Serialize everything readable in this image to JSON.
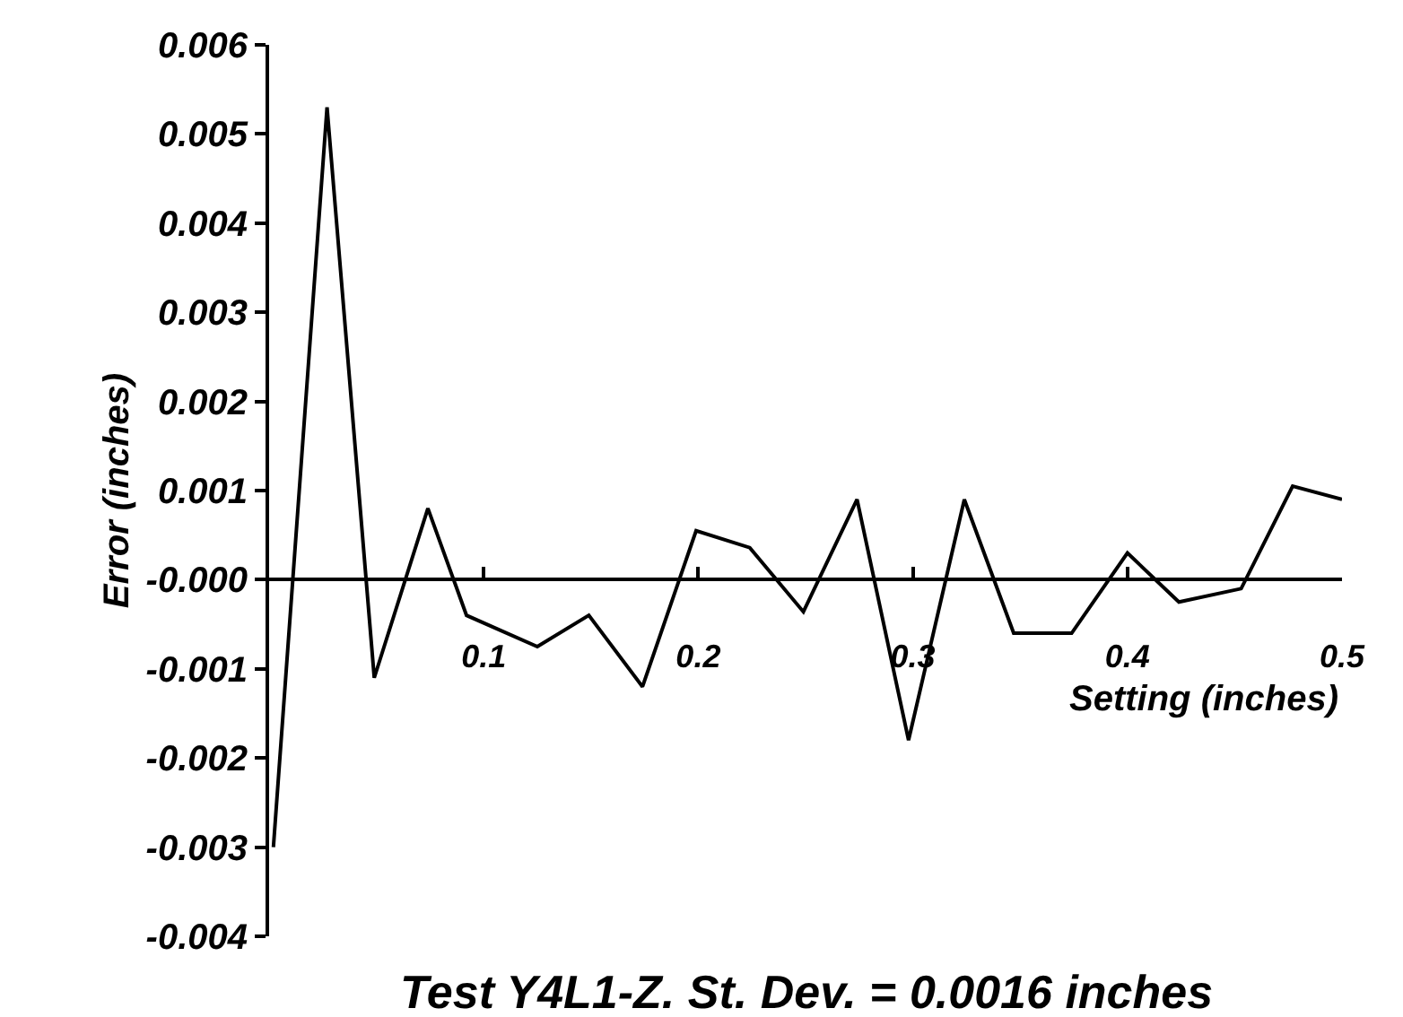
{
  "chart_data": {
    "type": "line",
    "xlabel": "Setting (inches)",
    "ylabel": "Error (inches)",
    "annotations": [
      "Test Y4L1-Z. St. Dev. = 0.0016 inches"
    ],
    "x": [
      0.002,
      0.027,
      0.049,
      0.074,
      0.092,
      0.125,
      0.149,
      0.174,
      0.199,
      0.224,
      0.249,
      0.274,
      0.298,
      0.324,
      0.347,
      0.374,
      0.4,
      0.424,
      0.453,
      0.477,
      0.5
    ],
    "series": [
      {
        "color": "#000000",
        "values": [
          -0.003,
          0.0053,
          -0.0011,
          0.0008,
          -0.0004,
          -0.00075,
          -0.0004,
          -0.0012,
          0.00055,
          0.00036,
          -0.00036,
          0.0009,
          -0.0018,
          0.0009,
          -0.0006,
          -0.0006,
          0.0003,
          -0.00025,
          -0.0001,
          0.00105,
          0.0009
        ]
      }
    ],
    "xlim": [
      0,
      0.5
    ],
    "xticks": [
      0.1,
      0.2,
      0.3,
      0.4,
      0.5
    ],
    "ylim": [
      -0.004,
      0.006
    ],
    "yticks": [
      {
        "value": -0.004,
        "label": "-0.004"
      },
      {
        "value": -0.003,
        "label": "-0.003"
      },
      {
        "value": -0.002,
        "label": "-0.002"
      },
      {
        "value": -0.001,
        "label": "-0.001"
      },
      {
        "value": 0,
        "label": "-0.000"
      },
      {
        "value": 0.001,
        "label": "0.001"
      },
      {
        "value": 0.002,
        "label": "0.002"
      },
      {
        "value": 0.003,
        "label": "0.003"
      },
      {
        "value": 0.004,
        "label": "0.004"
      },
      {
        "value": 0.005,
        "label": "0.005"
      },
      {
        "value": 0.006,
        "label": "0.006"
      }
    ],
    "grid": false,
    "marker": "none",
    "line_style": "solid"
  }
}
